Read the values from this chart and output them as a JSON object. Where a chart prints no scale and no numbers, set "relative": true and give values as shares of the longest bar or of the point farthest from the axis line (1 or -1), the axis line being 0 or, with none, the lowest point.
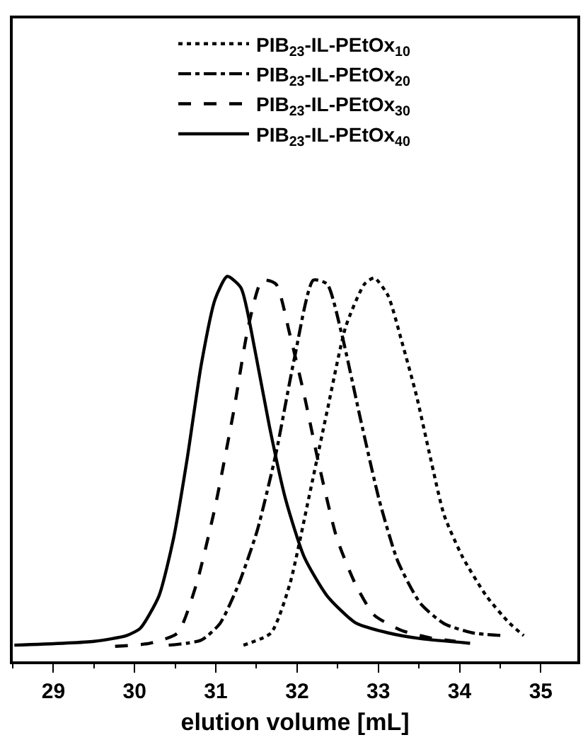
{
  "chart_data": {
    "type": "line",
    "relative": true,
    "xlabel": "elution volume [mL]",
    "xlim": [
      28.5,
      35.45
    ],
    "xticks": [
      29,
      30,
      31,
      32,
      33,
      34,
      35
    ],
    "legend": "top",
    "marker": "none",
    "series": [
      {
        "name": "PIB$_{23}$-IL-PEtOx$_{10}$",
        "color": "#000000",
        "line_style": "dotted",
        "x": [
          31.34,
          31.68,
          31.91,
          32.14,
          32.37,
          32.6,
          32.83,
          32.95,
          33.12,
          33.29,
          33.47,
          33.64,
          33.81,
          34.04,
          34.33,
          34.61,
          34.79
        ],
        "values": [
          0.042,
          0.074,
          0.2,
          0.42,
          0.65,
          0.87,
          0.98,
          0.996,
          0.95,
          0.83,
          0.69,
          0.53,
          0.38,
          0.27,
          0.17,
          0.1,
          0.067
        ]
      },
      {
        "name": "PIB$_{23}$-IL-PEtOx$_{20}$",
        "color": "#000000",
        "line_style": "dashdot",
        "x": [
          30.42,
          30.82,
          31.05,
          31.28,
          31.51,
          31.74,
          31.97,
          32.2,
          32.37,
          32.55,
          32.78,
          33.01,
          33.24,
          33.52,
          33.81,
          34.16,
          34.53
        ],
        "values": [
          0.042,
          0.055,
          0.098,
          0.2,
          0.34,
          0.54,
          0.79,
          0.99,
          0.98,
          0.85,
          0.63,
          0.42,
          0.26,
          0.15,
          0.098,
          0.074,
          0.067
        ]
      },
      {
        "name": "PIB$_{23}$-IL-PEtOx$_{30}$",
        "color": "#000000",
        "line_style": "dashed",
        "x": [
          29.76,
          30.19,
          30.53,
          30.76,
          30.99,
          31.22,
          31.4,
          31.57,
          31.74,
          31.91,
          32.09,
          32.26,
          32.49,
          32.72,
          32.95,
          33.29,
          33.64,
          33.95
        ],
        "values": [
          0.039,
          0.047,
          0.074,
          0.2,
          0.4,
          0.65,
          0.87,
          0.99,
          0.98,
          0.85,
          0.69,
          0.52,
          0.32,
          0.2,
          0.12,
          0.08,
          0.061,
          0.052
        ]
      },
      {
        "name": "PIB$_{23}$-IL-PEtOx$_{40}$",
        "color": "#000000",
        "line_style": "solid",
        "x": [
          28.52,
          29.5,
          29.9,
          30.07,
          30.3,
          30.48,
          30.65,
          30.82,
          30.99,
          31.14,
          31.31,
          31.48,
          31.66,
          31.86,
          32.09,
          32.37,
          32.72,
          33.12,
          33.52,
          34.13
        ],
        "values": [
          0.042,
          0.052,
          0.067,
          0.086,
          0.17,
          0.32,
          0.53,
          0.77,
          0.94,
          1.0,
          0.97,
          0.81,
          0.61,
          0.42,
          0.27,
          0.17,
          0.1,
          0.074,
          0.059,
          0.047
        ]
      }
    ]
  }
}
